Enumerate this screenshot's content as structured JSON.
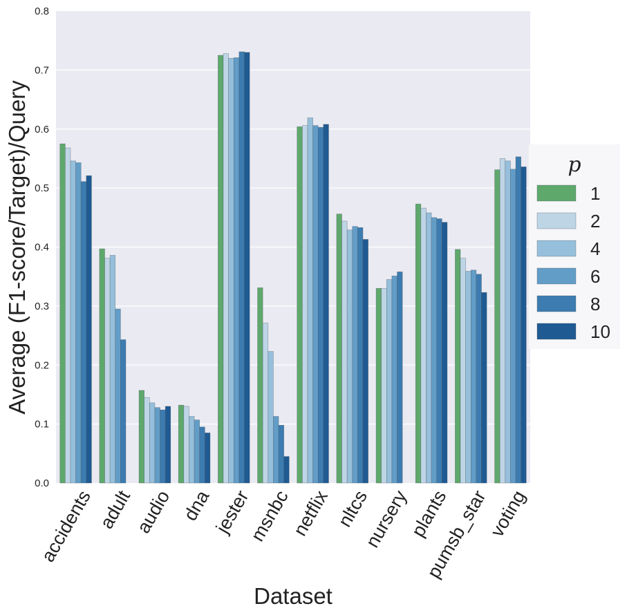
{
  "chart_data": {
    "type": "bar",
    "title": "",
    "xlabel": "Dataset",
    "ylabel": "Average (F1-score/Target)/Query",
    "ylim": [
      0,
      0.8
    ],
    "yticks": [
      "0.0",
      "0.1",
      "0.2",
      "0.3",
      "0.4",
      "0.5",
      "0.6",
      "0.7",
      "0.8"
    ],
    "categories": [
      "accidents",
      "adult",
      "audio",
      "dna",
      "jester",
      "msnbc",
      "netflix",
      "nltcs",
      "nursery",
      "plants",
      "pumsb_star",
      "voting"
    ],
    "legend": {
      "title": "p",
      "position": "right"
    },
    "series": [
      {
        "name": "1",
        "color": "#5fa86c",
        "values": [
          0.575,
          0.397,
          0.157,
          0.132,
          0.725,
          0.331,
          0.604,
          0.456,
          0.33,
          0.473,
          0.396,
          0.531
        ]
      },
      {
        "name": "2",
        "color": "#bed5e6",
        "values": [
          0.568,
          0.381,
          0.145,
          0.13,
          0.728,
          0.271,
          0.606,
          0.444,
          0.33,
          0.466,
          0.381,
          0.55
        ]
      },
      {
        "name": "4",
        "color": "#96bfdb",
        "values": [
          0.546,
          0.386,
          0.136,
          0.113,
          0.72,
          0.223,
          0.619,
          0.429,
          0.345,
          0.458,
          0.359,
          0.546
        ]
      },
      {
        "name": "6",
        "color": "#629dc7",
        "values": [
          0.543,
          0.295,
          0.128,
          0.107,
          0.721,
          0.113,
          0.606,
          0.435,
          0.351,
          0.45,
          0.361,
          0.532
        ]
      },
      {
        "name": "8",
        "color": "#3c7cb0",
        "values": [
          0.511,
          0.243,
          0.124,
          0.095,
          0.731,
          0.098,
          0.603,
          0.433,
          0.358,
          0.448,
          0.354,
          0.553
        ]
      },
      {
        "name": "10",
        "color": "#1f5a92",
        "values": [
          0.521,
          null,
          0.13,
          0.085,
          0.73,
          0.045,
          0.608,
          0.413,
          null,
          0.442,
          0.323,
          0.536
        ]
      }
    ]
  }
}
